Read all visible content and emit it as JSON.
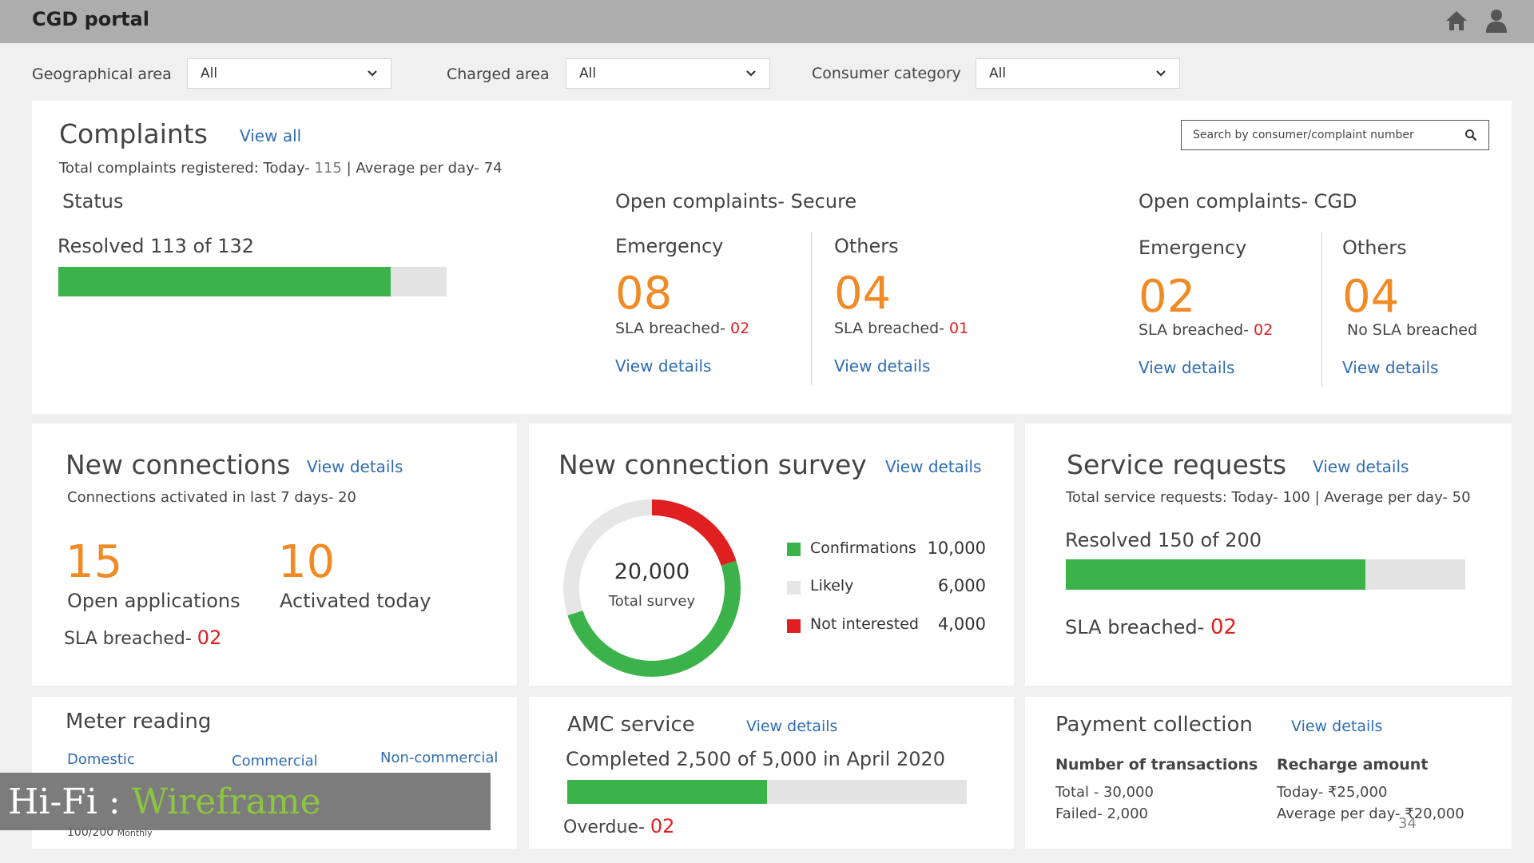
{
  "app": {
    "title": "CGD portal",
    "icons": [
      "home-icon",
      "user-icon"
    ]
  },
  "filters": [
    {
      "label": "Geographical area",
      "value": "All"
    },
    {
      "label": "Charged area",
      "value": "All"
    },
    {
      "label": "Consumer category",
      "value": "All"
    }
  ],
  "complaints": {
    "title": "Complaints",
    "view_all": "View all",
    "summary_prefix": "Total complaints registered: Today- ",
    "today": "115",
    "summary_suffix": " | Average per day- 74",
    "search_placeholder": "Search by consumer/complaint number",
    "status": {
      "title": "Status",
      "resolved_text": "Resolved 113 of 132",
      "resolved": 113,
      "total": 132
    },
    "secure": {
      "title": "Open complaints- Secure",
      "emergency": {
        "label": "Emergency",
        "count": "08",
        "sla_prefix": "SLA breached- ",
        "sla_value": "02",
        "link": "View details"
      },
      "others": {
        "label": "Others",
        "count": "04",
        "sla_prefix": "SLA breached- ",
        "sla_value": "01",
        "link": "View details"
      }
    },
    "cgd": {
      "title": "Open complaints- CGD",
      "emergency": {
        "label": "Emergency",
        "count": "02",
        "sla_prefix": "SLA breached- ",
        "sla_value": "02",
        "link": "View details"
      },
      "others": {
        "label": "Others",
        "count": "04",
        "sla_text": "No SLA breached",
        "link": "View details"
      }
    }
  },
  "new_connections": {
    "title": "New connections",
    "link": "View details",
    "summary": "Connections activated in last 7 days- 20",
    "open_count": "15",
    "open_label": "Open applications",
    "activated_count": "10",
    "activated_label": "Activated today",
    "sla_prefix": "SLA breached- ",
    "sla_value": "02"
  },
  "survey": {
    "title": "New connection survey",
    "link": "View details",
    "total_value": "20,000",
    "total_label": "Total survey",
    "colors": {
      "confirmations": "#3cb34a",
      "likely": "#e6e6e6",
      "not_interested": "#e02020"
    },
    "chart_data": {
      "type": "pie",
      "categories": [
        "Confirmations",
        "Likely",
        "Not interested"
      ],
      "values": [
        10000,
        6000,
        4000
      ],
      "labels": [
        "10,000",
        "6,000",
        "4,000"
      ]
    }
  },
  "service_requests": {
    "title": "Service requests",
    "link": "View details",
    "summary": "Total service requests: Today- 100 | Average per day- 50",
    "resolved_text": "Resolved 150 of 200",
    "resolved": 150,
    "total": 200,
    "sla_prefix": "SLA breached- ",
    "sla_value": "02"
  },
  "meter_reading": {
    "title": "Meter reading",
    "tabs": [
      "Domestic",
      "Commercial",
      "Non-commercial"
    ],
    "partial_value": "100/200",
    "partial_unit": "Monthly"
  },
  "amc": {
    "title": "AMC service",
    "link": "View details",
    "completed_text": "Completed 2,500 of 5,000 in April 2020",
    "completed": 2500,
    "total": 5000,
    "overdue_prefix": "Overdue- ",
    "overdue_value": "02"
  },
  "payment": {
    "title": "Payment collection",
    "link": "View details",
    "transactions": {
      "heading": "Number of transactions",
      "total": "Total - 30,000",
      "failed": "Failed- 2,000"
    },
    "recharge": {
      "heading": "Recharge amount",
      "today": "Today- ₹25,000",
      "average": "Average per day- ₹20,000"
    }
  },
  "slide": {
    "label_prefix": "Hi-Fi : ",
    "label_accent": "Wireframe",
    "page_number": "34"
  }
}
